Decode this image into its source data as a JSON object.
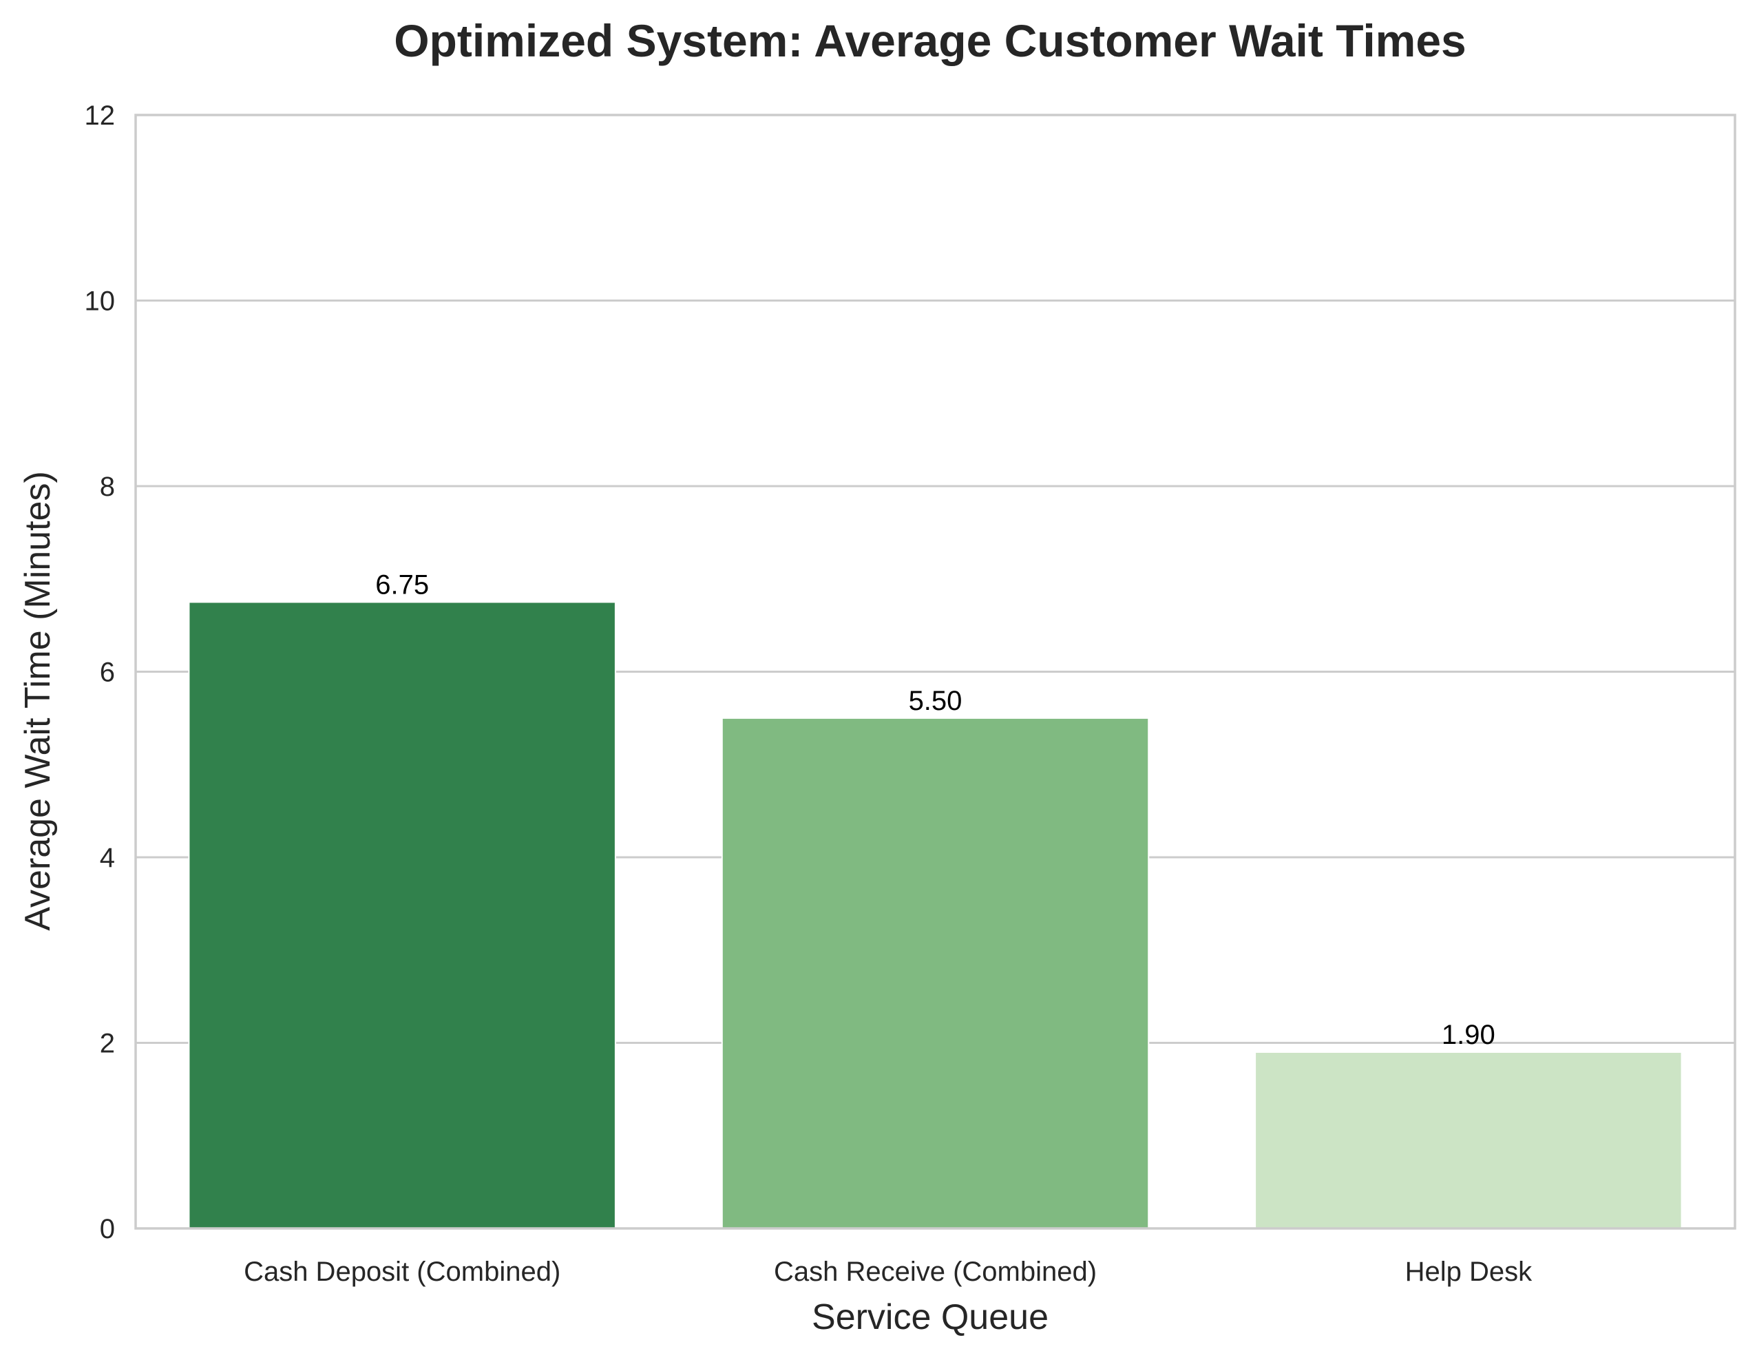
{
  "chart_data": {
    "type": "bar",
    "title": "Optimized System: Average Customer Wait Times",
    "xlabel": "Service Queue",
    "ylabel": "Average Wait Time (Minutes)",
    "categories": [
      "Cash Deposit (Combined)",
      "Cash Receive (Combined)",
      "Help Desk"
    ],
    "values": [
      6.75,
      5.5,
      1.9
    ],
    "value_labels": [
      "6.75",
      "5.50",
      "1.90"
    ],
    "bar_colors": [
      "#31814c",
      "#80ba81",
      "#cce4c5"
    ],
    "ylim": [
      0,
      12
    ],
    "yticks": [
      0,
      2,
      4,
      6,
      8,
      10,
      12
    ],
    "ytick_labels": [
      "0",
      "2",
      "4",
      "6",
      "8",
      "10",
      "12"
    ],
    "grid": "y",
    "legend": "none",
    "colors": {
      "grid": "#cccccc",
      "spine": "#cccccc",
      "text": "#262626"
    }
  }
}
